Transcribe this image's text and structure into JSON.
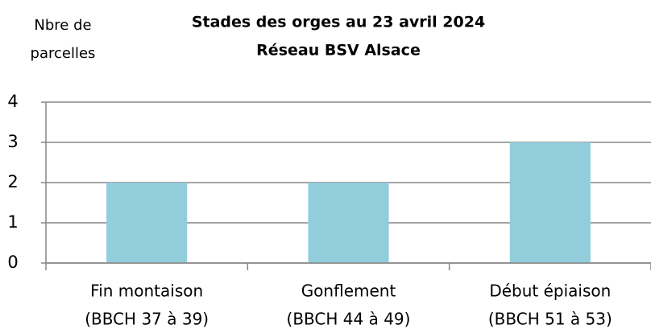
{
  "chart_data": {
    "type": "bar",
    "title": [
      "Stades des orges au 23 avril 2024",
      "Réseau BSV Alsace"
    ],
    "y_label": [
      "Nbre de",
      "parcelles"
    ],
    "categories": [
      [
        "Fin montaison",
        "(BBCH 37 à 39)"
      ],
      [
        "Gonflement",
        "(BBCH 44 à 49)"
      ],
      [
        "Début épiaison",
        "(BBCH 51 à 53)"
      ]
    ],
    "values": [
      2,
      2,
      3
    ],
    "color": "#92cddc",
    "ylim": [
      0,
      4
    ],
    "yticks": [
      0,
      1,
      2,
      3,
      4
    ],
    "grid": true
  }
}
